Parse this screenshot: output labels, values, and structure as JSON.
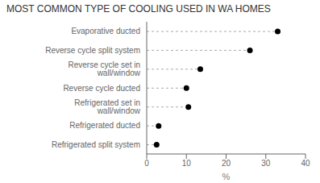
{
  "chart_data": {
    "type": "lollipop",
    "title": "MOST COMMON TYPE OF COOLING USED IN WA HOMES",
    "orientation": "horizontal",
    "categories": [
      "Refrigerated split system",
      "Refrigerated ducted",
      "Refrigerated set in wall/window",
      "Reverse cycle ducted",
      "Reverse cycle set in wall/window",
      "Reverse cycle split system",
      "Evaporative ducted"
    ],
    "values": [
      2.5,
      3.0,
      10.5,
      10.0,
      13.5,
      26.0,
      33.0
    ],
    "xlim": [
      0,
      40
    ],
    "xticks": [
      0,
      10,
      20,
      30,
      40
    ],
    "xlabel": "%",
    "color": "#000000",
    "marker": "circle",
    "line_style": "dashed",
    "grid": false
  }
}
